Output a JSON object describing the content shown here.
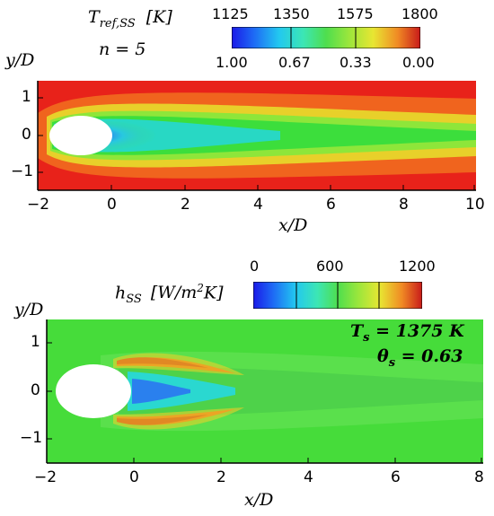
{
  "top_panel": {
    "colorbar_title": "T",
    "colorbar_title_sub": "ref,SS",
    "colorbar_unit": "[K]",
    "n_label": "n = 5",
    "colorbar_ticks_top": [
      "1125",
      "1350",
      "1575",
      "1800"
    ],
    "colorbar_ticks_bottom": [
      "1.00",
      "0.67",
      "0.33",
      "0.00"
    ],
    "y_axis_label": "y/D",
    "x_axis_label": "x/D",
    "x_ticks": [
      "−2",
      "0",
      "2",
      "4",
      "6",
      "8",
      "10"
    ],
    "y_ticks": [
      "1",
      "0",
      "−1"
    ]
  },
  "bottom_panel": {
    "colorbar_title": "h",
    "colorbar_title_sub": "SS",
    "colorbar_unit": "[W/m",
    "colorbar_unit_sup": "2",
    "colorbar_unit_end": "K]",
    "colorbar_ticks": [
      "0",
      "600",
      "1200"
    ],
    "y_axis_label": "y/D",
    "x_axis_label": "x/D",
    "x_ticks": [
      "−2",
      "0",
      "2",
      "4",
      "6",
      "8"
    ],
    "y_ticks": [
      "1",
      "0",
      "−1"
    ],
    "annotation_ts": "T",
    "annotation_ts_sub": "s",
    "annotation_ts_value": " = 1375 K",
    "annotation_theta": "θ",
    "annotation_theta_sub": "s",
    "annotation_theta_value": " = 0.63"
  },
  "colors": {
    "jet_red": "#e8221a",
    "jet_green": "#3cde3c",
    "jet_blue": "#1e3cf0",
    "jet_cyan": "#18d8e8"
  }
}
